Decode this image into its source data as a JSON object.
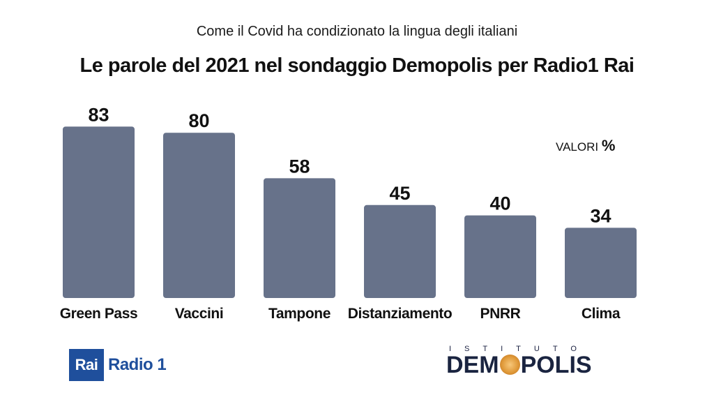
{
  "header": {
    "subtitle": "Come il Covid ha condizionato la lingua degli italiani",
    "title": "Le parole del 2021 nel sondaggio Demopolis per Radio1 Rai"
  },
  "units": {
    "label": "VALORI",
    "symbol": "%"
  },
  "colors": {
    "bar": "#67728a",
    "rai_blue": "#1f4f9c",
    "demopolis_navy": "#1a2440",
    "demopolis_orange": "#e09a3a"
  },
  "chart_data": {
    "type": "bar",
    "title": "Le parole del 2021 nel sondaggio Demopolis per Radio1 Rai",
    "subtitle": "Come il Covid ha condizionato la lingua degli italiani",
    "categories": [
      "Green Pass",
      "Vaccini",
      "Tampone",
      "Distanziamento",
      "PNRR",
      "Clima"
    ],
    "values": [
      83,
      80,
      58,
      45,
      40,
      34
    ],
    "data_labels": [
      "83",
      "80",
      "58",
      "45",
      "40",
      "34"
    ],
    "ylim": [
      0,
      100
    ],
    "grid": false,
    "xlabel": "",
    "ylabel": ""
  },
  "logos": {
    "rai_box": "Rai",
    "rai_text": "Radio 1",
    "demopolis_top": "ISTITUTO",
    "demopolis_left": "DEM",
    "demopolis_right": "POLIS"
  }
}
